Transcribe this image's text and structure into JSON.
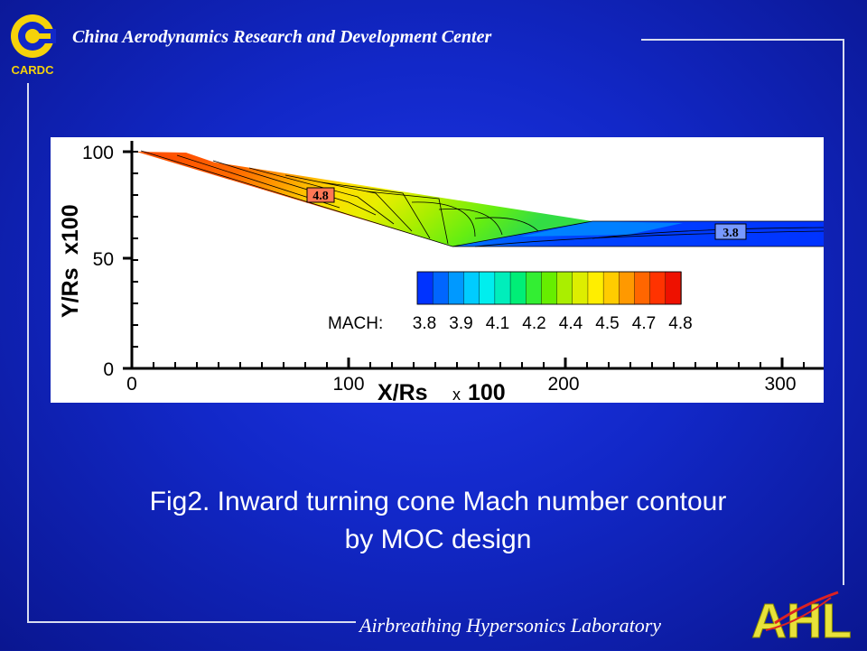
{
  "header": {
    "title": "China Aerodynamics Research and Development Center",
    "logo_text": "CARDC"
  },
  "footer": {
    "title": "Airbreathing Hypersonics Laboratory",
    "logo_text": "AHL"
  },
  "figure": {
    "y_axis_label": "Y/Rs",
    "y_axis_multiplier": "x100",
    "x_axis_label": "X/Rs",
    "x_axis_multiplier_x": "x",
    "x_axis_multiplier_value": "100",
    "x_ticks": [
      "0",
      "100",
      "200",
      "300"
    ],
    "y_ticks": [
      "0",
      "50",
      "100"
    ],
    "annotation_high": "4.8",
    "annotation_low": "3.8",
    "legend_title": "MACH:",
    "legend_values": [
      "3.8",
      "3.9",
      "4.1",
      "4.2",
      "4.4",
      "4.5",
      "4.7",
      "4.8"
    ],
    "legend_colors": [
      "#0033ff",
      "#0066ff",
      "#0099ff",
      "#00ccff",
      "#00eeee",
      "#00eebb",
      "#00ee77",
      "#33ee33",
      "#66ee00",
      "#aaee00",
      "#ddee00",
      "#ffee00",
      "#ffcc00",
      "#ff9900",
      "#ff6600",
      "#ff3300",
      "#ee1100"
    ]
  },
  "caption": {
    "line1": "Fig2. Inward turning cone Mach number contour",
    "line2": "by MOC design"
  }
}
